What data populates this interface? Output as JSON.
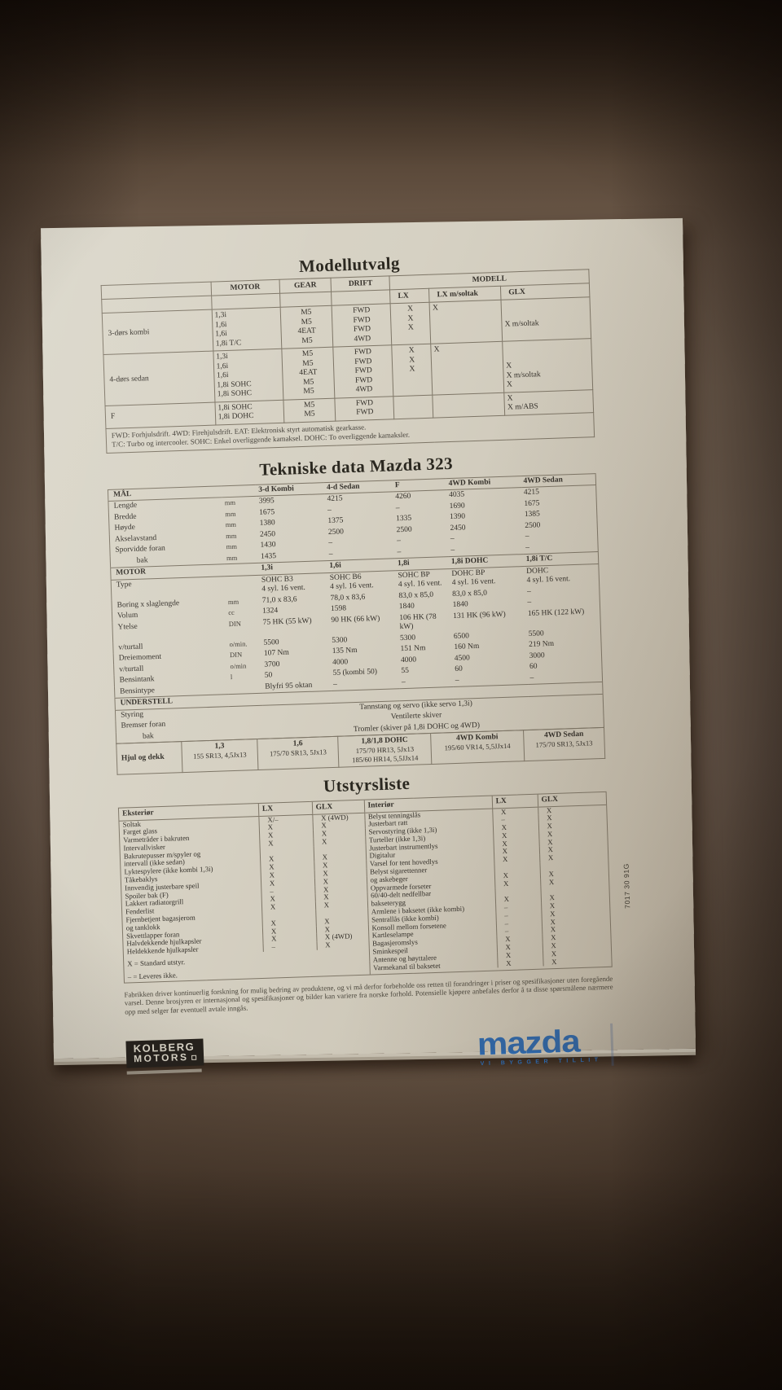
{
  "modellutvalg": {
    "title": "Modellutvalg",
    "col_headers": [
      "MOTOR",
      "GEAR",
      "DRIFT"
    ],
    "modell_header": "MODELL",
    "modell_cols": [
      "LX",
      "LX m/soltak",
      "GLX"
    ],
    "groups": [
      {
        "name": "3-dørs kombi",
        "rows": [
          [
            "1,3i",
            "M5",
            "FWD",
            "X",
            "X",
            ""
          ],
          [
            "1,6i",
            "M5",
            "FWD",
            "X",
            "",
            ""
          ],
          [
            "1,6i",
            "4EAT",
            "FWD",
            "X",
            "",
            "X m/soltak"
          ],
          [
            "1,8i T/C",
            "M5",
            "4WD",
            "",
            "",
            ""
          ]
        ]
      },
      {
        "name": "4-dørs sedan",
        "rows": [
          [
            "1,3i",
            "M5",
            "FWD",
            "X",
            "X",
            ""
          ],
          [
            "1,6i",
            "M5",
            "FWD",
            "X",
            "",
            ""
          ],
          [
            "1,6i",
            "4EAT",
            "FWD",
            "X",
            "",
            "X"
          ],
          [
            "1,8i SOHC",
            "M5",
            "FWD",
            "",
            "",
            "X m/soltak"
          ],
          [
            "1,8i SOHC",
            "M5",
            "4WD",
            "",
            "",
            "X"
          ]
        ]
      },
      {
        "name": "F",
        "rows": [
          [
            "1,8i SOHC",
            "M5",
            "FWD",
            "",
            "",
            "X"
          ],
          [
            "1,8i DOHC",
            "M5",
            "FWD",
            "",
            "",
            "X m/ABS"
          ]
        ]
      }
    ],
    "footnotes": [
      "FWD: Forhjulsdrift. 4WD: Firehjulsdrift. EAT: Elektronisk styrt automatisk gearkasse.",
      "T/C: Turbo og intercooler. SOHC: Enkel overliggende kamaksel. DOHC: To overliggende kamaksler."
    ]
  },
  "tekniske": {
    "title": "Tekniske data Mazda 323",
    "dim_header": "MÅL",
    "dim_cols": [
      "3-d Kombi",
      "4-d Sedan",
      "F",
      "4WD Kombi",
      "4WD Sedan"
    ],
    "dim_rows": [
      [
        "Lengde",
        "mm",
        "3995",
        "4215",
        "4260",
        "4035",
        "4215"
      ],
      [
        "Bredde",
        "mm",
        "1675",
        "–",
        "–",
        "1690",
        "1675"
      ],
      [
        "Høyde",
        "mm",
        "1380",
        "1375",
        "1335",
        "1390",
        "1385"
      ],
      [
        "Akselavstand",
        "mm",
        "2450",
        "2500",
        "2500",
        "2450",
        "2500"
      ],
      [
        "Sporvidde foran",
        "mm",
        "1430",
        "–",
        "–",
        "–",
        "–"
      ],
      [
        "bak",
        "mm",
        "1435",
        "–",
        "–",
        "–",
        "–"
      ]
    ],
    "motor_header": "MOTOR",
    "motor_cols": [
      "1,3i",
      "1,6i",
      "1,8i",
      "1,8i DOHC",
      "1,8i T/C"
    ],
    "motor_rows": [
      [
        "Type",
        "",
        "SOHC B3\n4 syl. 16 vent.",
        "SOHC B6\n4 syl. 16 vent.",
        "SOHC BP\n4 syl. 16 vent.",
        "DOHC BP\n4 syl. 16 vent.",
        "DOHC\n4 syl. 16 vent."
      ],
      [
        "Boring x slaglengde",
        "mm",
        "71,0 x 83,6",
        "78,0 x 83,6",
        "83,0 x 85,0",
        "83,0 x 85,0",
        "–"
      ],
      [
        "Volum",
        "cc",
        "1324",
        "1598",
        "1840",
        "1840",
        "–"
      ],
      [
        "Ytelse",
        "DIN",
        "75 HK (55 kW)",
        "90 HK (66 kW)",
        "106 HK (78 kW)",
        "131 HK (96 kW)",
        "165 HK (122 kW)"
      ],
      [
        "v/turtall",
        "o/min.",
        "5500",
        "5300",
        "5300",
        "6500",
        "5500"
      ],
      [
        "Dreiemoment",
        "DIN",
        "107 Nm",
        "135 Nm",
        "151 Nm",
        "160 Nm",
        "219 Nm"
      ],
      [
        "v/turtall",
        "o/min",
        "3700",
        "4000",
        "4000",
        "4500",
        "3000"
      ],
      [
        "Bensintank",
        "l",
        "50",
        "55 (kombi 50)",
        "55",
        "60",
        "60"
      ],
      [
        "Bensintype",
        "",
        "Blyfri 95 oktan",
        "–",
        "–",
        "–",
        "–"
      ]
    ],
    "understell_header": "UNDERSTELL",
    "understell_rows": [
      [
        "Styring",
        "Tannstang og servo (ikke servo 1,3i)"
      ],
      [
        "Bremser foran",
        "Ventilerte skiver"
      ],
      [
        "bak",
        "Tromler (skiver på 1,8i DOHC og 4WD)"
      ]
    ],
    "wheels_label": "Hjul og dekk",
    "wheels_cols": [
      "1,3",
      "1,6",
      "1,8/1,8 DOHC",
      "4WD Kombi",
      "4WD Sedan"
    ],
    "wheels_vals": [
      "155 SR13, 4,5Jx13",
      "175/70 SR13, 5Jx13",
      "175/70 HR13, 5Jx13\n185/60 HR14, 5,5JJx14",
      "195/60 VR14, 5,5JJx14",
      "175/70 SR13, 5Jx13"
    ]
  },
  "utstyr": {
    "title": "Utstyrsliste",
    "left": {
      "header": [
        "Eksteriør",
        "LX",
        "GLX"
      ],
      "rows": [
        [
          "Soltak",
          "X/–",
          "X (4WD)"
        ],
        [
          "Farget glass",
          "X",
          "X"
        ],
        [
          "Varmetråder i bakruten",
          "X",
          "X"
        ],
        [
          "Intervallvisker",
          "X",
          "X"
        ],
        [
          "Bakrutepusser m/spyler og\nintervall (ikke sedan)",
          "X",
          "X"
        ],
        [
          "Lyktespylere (ikke kombi 1,3i)",
          "X",
          "X"
        ],
        [
          "Tåkebaklys",
          "X",
          "X"
        ],
        [
          "Innvendig justerbare speil",
          "X",
          "X"
        ],
        [
          "Spoiler bak (F)",
          "–",
          "X"
        ],
        [
          "Lakkert radiatorgrill",
          "X",
          "X"
        ],
        [
          "Fenderlist",
          "X",
          "X"
        ],
        [
          "Fjernbetjent bagasjerom\nog tanklokk",
          "X",
          "X"
        ],
        [
          "Skvettlapper foran",
          "X",
          "X"
        ],
        [
          "Halvdekkende hjulkapsler",
          "X",
          "X (4WD)"
        ],
        [
          "Heldekkende hjulkapsler",
          "–",
          "X"
        ]
      ],
      "legend": [
        "X = Standard utstyr.",
        "– = Leveres ikke."
      ]
    },
    "right": {
      "header": [
        "Interiør",
        "LX",
        "GLX"
      ],
      "rows": [
        [
          "Belyst tenningslås",
          "X",
          "X"
        ],
        [
          "Justerbart ratt",
          "–",
          "X"
        ],
        [
          "Servostyring (ikke 1,3i)",
          "X",
          "X"
        ],
        [
          "Turteller (ikke 1,3i)",
          "X",
          "X"
        ],
        [
          "Justerbart instrumentlys",
          "X",
          "X"
        ],
        [
          "Digitalur",
          "X",
          "X"
        ],
        [
          "Varsel for tent hovedlys",
          "X",
          "X"
        ],
        [
          "Belyst sigarettenner\nog askebeger",
          "X",
          "X"
        ],
        [
          "Oppvarmede forseter",
          "X",
          "X"
        ],
        [
          "60/40-delt nedfellbar\nbakseterygg",
          "X",
          "X"
        ],
        [
          "Armlene i baksetet (ikke kombi)",
          "–",
          "X"
        ],
        [
          "Sentrallås (ikke kombi)",
          "–",
          "X"
        ],
        [
          "Konsoll mellom forsetene",
          "–",
          "X"
        ],
        [
          "Kartleselampe",
          "–",
          "X"
        ],
        [
          "Bagasjeromslys",
          "X",
          "X"
        ],
        [
          "Sminkespeil",
          "X",
          "X"
        ],
        [
          "Antenne og høyttalere",
          "X",
          "X"
        ],
        [
          "Varmekanal til baksetet",
          "X",
          "X"
        ]
      ]
    }
  },
  "disclaimer": {
    "text": "Fabrikken driver kontinuerlig forskning for mulig bedring av produktene, og vi må derfor forbeholde oss retten til forandringer i priser og spesifikasjoner uten foregående varsel. Denne brosjyren er internasjonal og spesifikasjoner og bilder kan variere fra norske forhold. Potensielle kjøpere anbefales derfor å ta disse spørsmålene nærmere opp med selger før eventuell avtale inngås."
  },
  "footer": {
    "kolberg_line1": "KOLBERG",
    "kolberg_line2": "MOTORS",
    "mazda_logo": "mazda",
    "mazda_tagline": "VI BYGGER TILLIT",
    "mazda_blue": "#2e68ab",
    "part_number": "7017 30 91G"
  }
}
